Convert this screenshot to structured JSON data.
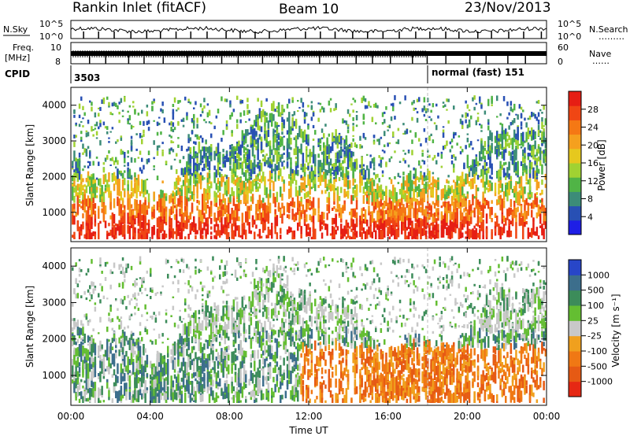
{
  "header": {
    "station": "Rankin Inlet (fitACF)",
    "beam": "Beam 10",
    "date": "23/Nov/2013"
  },
  "top_panels": {
    "nsky_label": "N.Sky",
    "nsearch_label": "N.Search",
    "nsearch_dots": "………",
    "noise_ticks": [
      "10^5",
      "10^0"
    ],
    "freq_label_line1": "Freq.",
    "freq_label_line2": "[MHz]",
    "freq_ticks": [
      "10",
      "8"
    ],
    "nave_label": "Nave",
    "nave_dots": "……",
    "nave_ticks": [
      "60",
      "0"
    ],
    "cpid_label": "CPID",
    "cpid_first": "3503",
    "cpid_second": "normal (fast) 151"
  },
  "colors": {
    "power_scale": [
      "#1e1ee6",
      "#2850b4",
      "#3c8c78",
      "#50b446",
      "#a0d232",
      "#e6c81e",
      "#f5a01e",
      "#f57814",
      "#f04614",
      "#e61e14"
    ],
    "velocity_scale": [
      "#2846c8",
      "#3c6e8c",
      "#3c8c5a",
      "#64be32",
      "#c8c8c8",
      "#f0a01e",
      "#f07814",
      "#e65a14",
      "#e62814"
    ]
  },
  "chart_data": [
    {
      "type": "heatmap",
      "name": "Power",
      "ylabel": "Slant Range [km]",
      "yticks": [
        "1000",
        "2000",
        "3000",
        "4000"
      ],
      "ylim": [
        180,
        4500
      ],
      "colorbar_label": "Power [dB]",
      "colorbar_ticks": [
        "4",
        "8",
        "12",
        "16",
        "20",
        "24",
        "28"
      ],
      "colorbar_range": [
        0,
        30
      ]
    },
    {
      "type": "heatmap",
      "name": "Velocity",
      "ylabel": "Slant Range [km]",
      "yticks": [
        "1000",
        "2000",
        "3000",
        "4000"
      ],
      "ylim": [
        180,
        4500
      ],
      "colorbar_label": "Velocity [m s⁻¹]",
      "colorbar_ticks": [
        "1000",
        "500",
        "100",
        "25",
        "-25",
        "-100",
        "-500",
        "-1000"
      ]
    }
  ],
  "xaxis": {
    "label": "Time UT",
    "ticks": [
      "00:00",
      "04:00",
      "08:00",
      "12:00",
      "16:00",
      "20:00",
      "00:00"
    ],
    "range_hours": [
      0,
      24
    ]
  }
}
